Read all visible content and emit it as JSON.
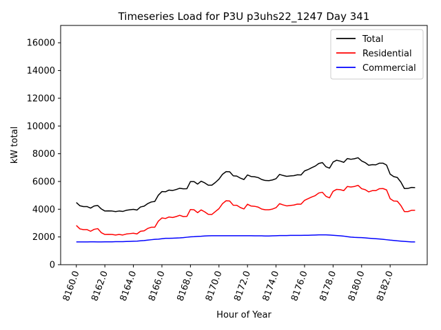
{
  "chart_data": {
    "type": "line",
    "title": "Timeseries Load for P3U p3uhs22_1247  Day 341",
    "xlabel": "Hour of Year",
    "ylabel": "kW total",
    "xlim": [
      8158.9,
      8184.6
    ],
    "ylim": [
      0,
      17250
    ],
    "x_ticks": [
      8160,
      8162,
      8164,
      8166,
      8168,
      8170,
      8172,
      8174,
      8176,
      8178,
      8180,
      8182
    ],
    "x_tick_labels": [
      "8160.0",
      "8162.0",
      "8164.0",
      "8166.0",
      "8168.0",
      "8170.0",
      "8172.0",
      "8174.0",
      "8176.0",
      "8178.0",
      "8180.0",
      "8182.0"
    ],
    "y_ticks": [
      0,
      2000,
      4000,
      6000,
      8000,
      10000,
      12000,
      14000,
      16000
    ],
    "y_tick_labels": [
      "0",
      "2000",
      "4000",
      "6000",
      "8000",
      "10000",
      "12000",
      "14000",
      "16000"
    ],
    "x_start": 8160,
    "x_step": 0.25,
    "legend_position": "top-right",
    "series": [
      {
        "name": "Total",
        "color": "#000000",
        "values": [
          4480,
          4250,
          4190,
          4190,
          4080,
          4230,
          4270,
          4020,
          3870,
          3880,
          3870,
          3830,
          3870,
          3840,
          3920,
          3960,
          3990,
          3940,
          4160,
          4220,
          4400,
          4520,
          4560,
          5010,
          5270,
          5260,
          5380,
          5350,
          5420,
          5510,
          5470,
          5480,
          5990,
          5990,
          5810,
          6020,
          5900,
          5730,
          5730,
          5930,
          6170,
          6520,
          6710,
          6700,
          6410,
          6390,
          6240,
          6140,
          6470,
          6360,
          6340,
          6280,
          6140,
          6070,
          6060,
          6110,
          6200,
          6510,
          6430,
          6370,
          6400,
          6420,
          6480,
          6470,
          6760,
          6860,
          6990,
          7110,
          7300,
          7360,
          7060,
          6960,
          7400,
          7530,
          7470,
          7380,
          7650,
          7600,
          7640,
          7710,
          7480,
          7360,
          7170,
          7210,
          7200,
          7320,
          7320,
          7180,
          6530,
          6350,
          6290,
          5960,
          5490,
          5500,
          5570,
          5560
        ]
      },
      {
        "name": "Residential",
        "color": "#ff0000",
        "values": [
          2830,
          2580,
          2530,
          2530,
          2410,
          2550,
          2600,
          2310,
          2180,
          2190,
          2180,
          2140,
          2180,
          2140,
          2210,
          2240,
          2270,
          2220,
          2410,
          2440,
          2610,
          2700,
          2700,
          3140,
          3370,
          3330,
          3440,
          3400,
          3470,
          3560,
          3470,
          3480,
          3980,
          3960,
          3750,
          3950,
          3810,
          3630,
          3620,
          3830,
          4040,
          4400,
          4610,
          4590,
          4290,
          4280,
          4120,
          4020,
          4360,
          4230,
          4210,
          4150,
          4010,
          3960,
          3960,
          4010,
          4110,
          4400,
          4310,
          4240,
          4270,
          4300,
          4370,
          4360,
          4640,
          4760,
          4880,
          4980,
          5170,
          5220,
          4930,
          4820,
          5290,
          5430,
          5410,
          5340,
          5640,
          5600,
          5640,
          5720,
          5480,
          5410,
          5250,
          5340,
          5340,
          5480,
          5490,
          5390,
          4760,
          4590,
          4580,
          4270,
          3830,
          3830,
          3920,
          3920
        ]
      },
      {
        "name": "Commercial",
        "color": "#0000ff",
        "values": [
          1640,
          1640,
          1640,
          1640,
          1650,
          1650,
          1640,
          1640,
          1650,
          1650,
          1650,
          1660,
          1660,
          1660,
          1670,
          1680,
          1690,
          1700,
          1720,
          1740,
          1770,
          1800,
          1830,
          1840,
          1870,
          1900,
          1900,
          1910,
          1920,
          1930,
          1950,
          1980,
          2010,
          2020,
          2040,
          2050,
          2070,
          2080,
          2090,
          2090,
          2090,
          2090,
          2090,
          2090,
          2090,
          2090,
          2090,
          2090,
          2090,
          2090,
          2080,
          2080,
          2080,
          2070,
          2070,
          2080,
          2090,
          2100,
          2100,
          2100,
          2110,
          2110,
          2110,
          2110,
          2120,
          2120,
          2130,
          2140,
          2150,
          2150,
          2150,
          2140,
          2120,
          2100,
          2080,
          2060,
          2020,
          1990,
          1970,
          1960,
          1950,
          1930,
          1910,
          1890,
          1870,
          1850,
          1830,
          1800,
          1770,
          1750,
          1720,
          1700,
          1680,
          1660,
          1640,
          1640
        ]
      }
    ]
  }
}
